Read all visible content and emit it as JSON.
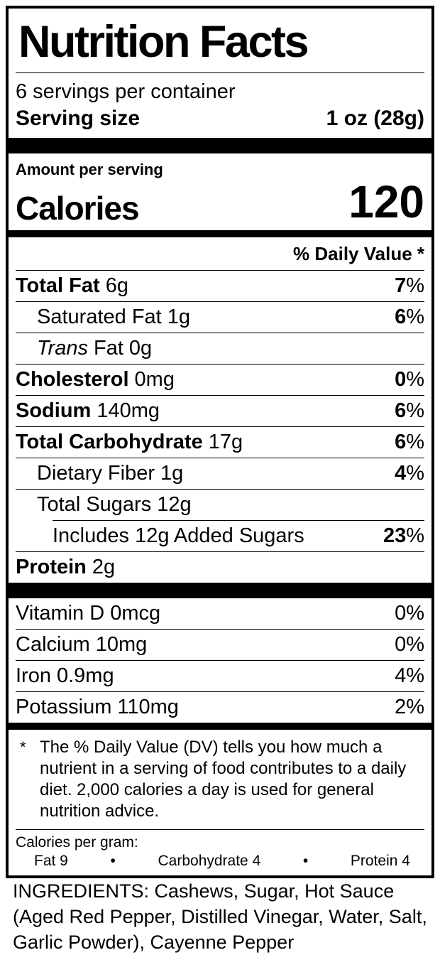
{
  "label": {
    "title": "Nutrition Facts",
    "servings_per_container": "6 servings per container",
    "serving_size": {
      "label": "Serving size",
      "value": "1 oz (28g)"
    },
    "amount_per_serving": "Amount per serving",
    "calories": {
      "label": "Calories",
      "value": "120"
    },
    "daily_value_header": "% Daily Value *",
    "nutrients": [
      {
        "name": "Total Fat",
        "amount": "6g",
        "dv_num": "7",
        "dv_sign": "%"
      },
      {
        "name": "Saturated Fat",
        "amount": "1g",
        "dv_num": "6",
        "dv_sign": "%"
      },
      {
        "name_italic": "Trans",
        "name": "Fat",
        "amount": "0g",
        "dv_num": "",
        "dv_sign": ""
      },
      {
        "name": "Cholesterol",
        "amount": "0mg",
        "dv_num": "0",
        "dv_sign": "%"
      },
      {
        "name": "Sodium",
        "amount": "140mg",
        "dv_num": "6",
        "dv_sign": "%"
      },
      {
        "name": "Total Carbohydrate",
        "amount": "17g",
        "dv_num": "6",
        "dv_sign": "%"
      },
      {
        "name": "Dietary Fiber",
        "amount": "1g",
        "dv_num": "4",
        "dv_sign": "%"
      },
      {
        "name": "Total Sugars",
        "amount": "12g",
        "dv_num": "",
        "dv_sign": ""
      },
      {
        "name": "Includes 12g Added Sugars",
        "amount": "",
        "dv_num": "23",
        "dv_sign": "%"
      },
      {
        "name": "Protein",
        "amount": "2g",
        "dv_num": "",
        "dv_sign": ""
      }
    ],
    "vitamins": [
      {
        "name": "Vitamin D",
        "amount": "0mcg",
        "dv": "0%"
      },
      {
        "name": "Calcium",
        "amount": "10mg",
        "dv": "0%"
      },
      {
        "name": "Iron",
        "amount": "0.9mg",
        "dv": "4%"
      },
      {
        "name": "Potassium",
        "amount": "110mg",
        "dv": "2%"
      }
    ],
    "footnote": {
      "marker": "*",
      "text": "The % Daily Value (DV) tells you how much a nutrient in a serving of food contributes to a daily diet. 2,000 calories a day is used for general nutrition advice."
    },
    "calories_per_gram": {
      "heading": "Calories per gram:",
      "fat": "Fat 9",
      "carbohydrate": "Carbohydrate 4",
      "protein": "Protein 4",
      "bullet": "•"
    }
  },
  "ingredients": "INGREDIENTS: Cashews, Sugar, Hot Sauce (Aged Red Pepper, Distilled Vinegar, Water, Salt, Garlic Powder), Cayenne Pepper"
}
